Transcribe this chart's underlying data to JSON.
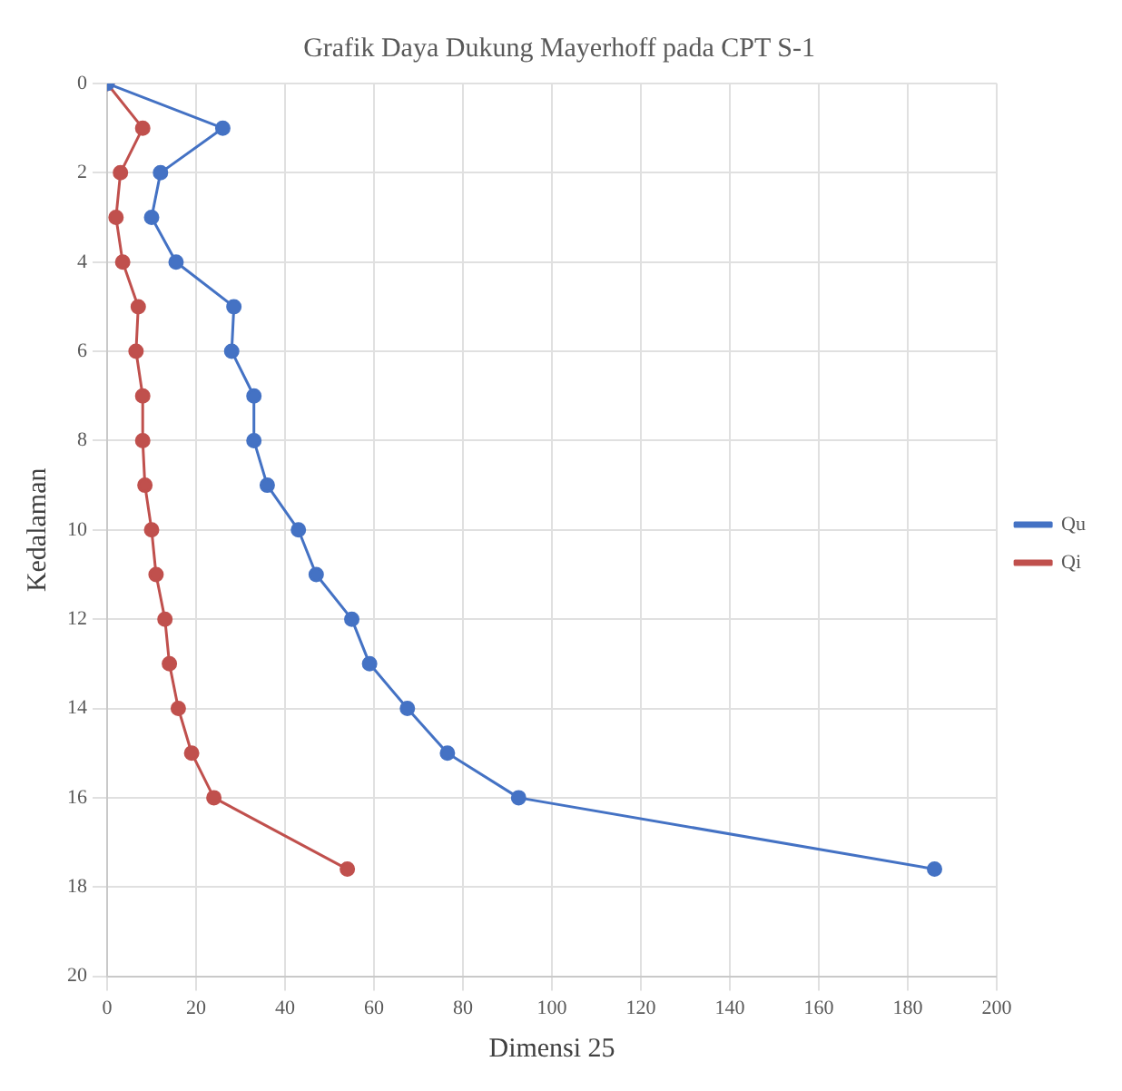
{
  "chart_data": {
    "type": "line",
    "title": "Grafik Daya Dukung Mayerhoff pada CPT S-1",
    "xlabel": "Dimensi 25",
    "ylabel": "Kedalaman",
    "series": [
      {
        "name": "Qu",
        "color": "#4472c4",
        "x": [
          0,
          26,
          12,
          10,
          15.5,
          28.5,
          28,
          33,
          33,
          36,
          43,
          47,
          55,
          59,
          67.5,
          76.5,
          92.5,
          186
        ],
        "values": [
          0,
          1,
          2,
          3,
          4,
          5,
          6,
          7,
          8,
          9,
          10,
          11,
          12,
          13,
          14,
          15,
          16,
          17.6
        ]
      },
      {
        "name": "Qi",
        "color": "#c0504d",
        "x": [
          0,
          8,
          3,
          2,
          3.5,
          7,
          6.5,
          8,
          8,
          8.5,
          10,
          11,
          13,
          14,
          16,
          19,
          24,
          54
        ],
        "values": [
          0,
          1,
          2,
          3,
          4,
          5,
          6,
          7,
          8,
          9,
          10,
          11,
          12,
          13,
          14,
          15,
          16,
          17.6
        ]
      }
    ],
    "xlim": [
      0,
      200
    ],
    "xticks": [
      0,
      20,
      40,
      60,
      80,
      100,
      120,
      140,
      160,
      180,
      200
    ],
    "ylim": [
      20,
      0
    ],
    "yticks": [
      0,
      2,
      4,
      6,
      8,
      10,
      12,
      14,
      16,
      18,
      20
    ],
    "grid": true,
    "legend": "right",
    "marker": "circle",
    "line_style": "solid"
  }
}
